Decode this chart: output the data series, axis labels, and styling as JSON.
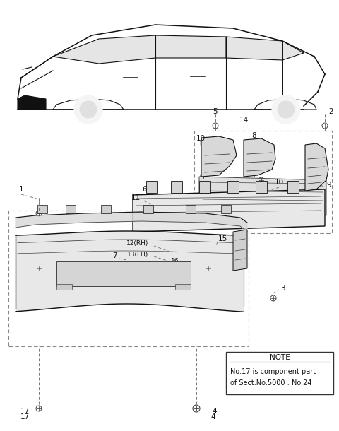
{
  "bg_color": "#ffffff",
  "lc": "#444444",
  "dc": "#111111",
  "note_lines": [
    "NOTE",
    "No.17 is component part",
    "of Sect.No.5000 : No.24"
  ],
  "figsize": [
    4.8,
    6.1
  ],
  "dpi": 100
}
